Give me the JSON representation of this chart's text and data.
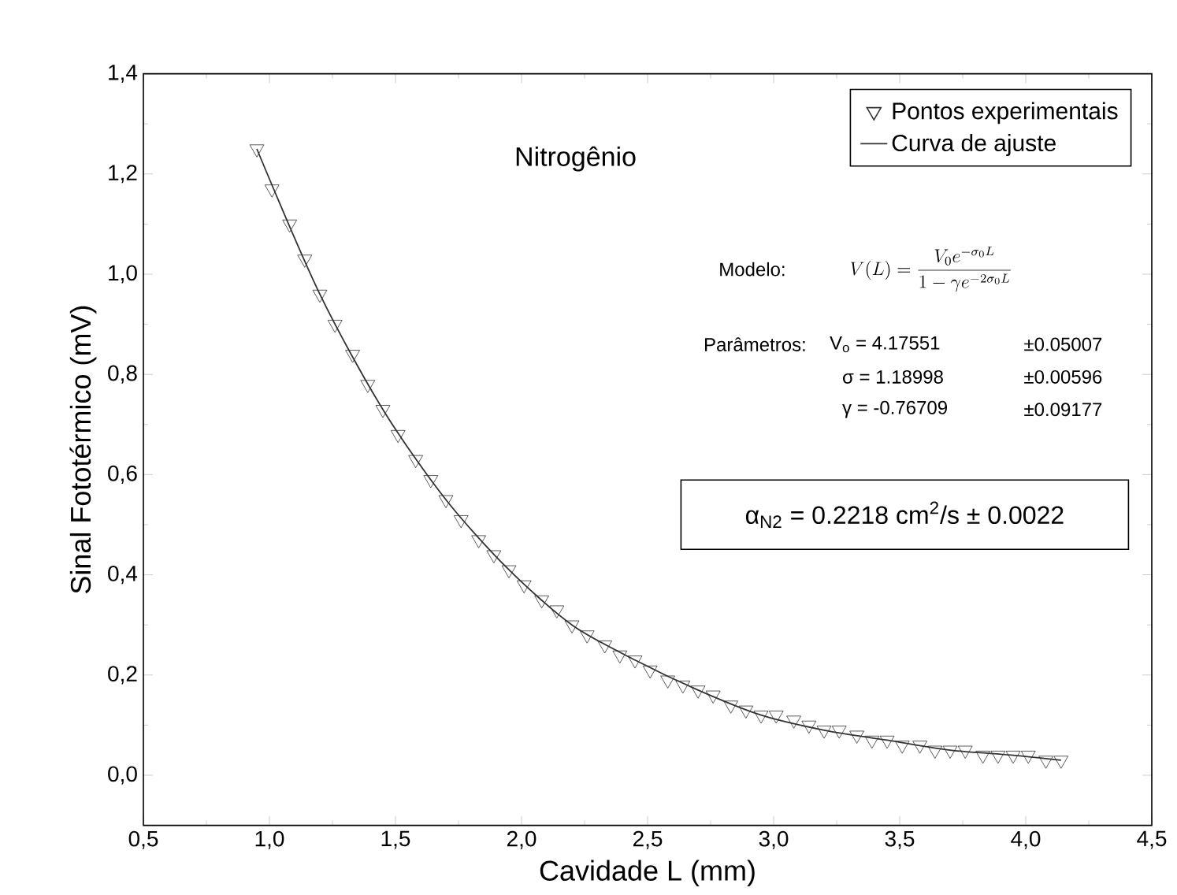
{
  "chart_data": {
    "type": "scatter",
    "xlabel": "Cavidade L (mm)",
    "ylabel": "Sinal Fototérmico (mV)",
    "xlim": [
      0.5,
      4.5
    ],
    "ylim": [
      -0.1,
      1.4
    ],
    "xticks": [
      {
        "value": 0.5,
        "label": "0,5"
      },
      {
        "value": 1.0,
        "label": "1,0"
      },
      {
        "value": 1.5,
        "label": "1,5"
      },
      {
        "value": 2.0,
        "label": "2,0"
      },
      {
        "value": 2.5,
        "label": "2,5"
      },
      {
        "value": 3.0,
        "label": "3,0"
      },
      {
        "value": 3.5,
        "label": "3,5"
      },
      {
        "value": 4.0,
        "label": "4,0"
      },
      {
        "value": 4.5,
        "label": "4,5"
      }
    ],
    "yticks": [
      {
        "value": 0.0,
        "label": "0,0"
      },
      {
        "value": 0.2,
        "label": "0,2"
      },
      {
        "value": 0.4,
        "label": "0,4"
      },
      {
        "value": 0.6,
        "label": "0,6"
      },
      {
        "value": 0.8,
        "label": "0,8"
      },
      {
        "value": 1.0,
        "label": "1,0"
      },
      {
        "value": 1.2,
        "label": "1,2"
      },
      {
        "value": 1.4,
        "label": "1,4"
      }
    ],
    "legend": "top right",
    "marker": "triangle",
    "series": [
      {
        "name": "Pontos experimentais",
        "color": "#333333",
        "x": [
          0.95,
          1.01,
          1.08,
          1.14,
          1.2,
          1.26,
          1.33,
          1.39,
          1.45,
          1.51,
          1.58,
          1.64,
          1.7,
          1.76,
          1.83,
          1.89,
          1.95,
          2.01,
          2.08,
          2.14,
          2.2,
          2.26,
          2.33,
          2.39,
          2.45,
          2.51,
          2.58,
          2.64,
          2.7,
          2.76,
          2.83,
          2.89,
          2.95,
          3.01,
          3.08,
          3.14,
          3.2,
          3.26,
          3.33,
          3.39,
          3.45,
          3.51,
          3.58,
          3.64,
          3.7,
          3.76,
          3.83,
          3.89,
          3.95,
          4.01,
          4.08,
          4.14
        ],
        "values": [
          1.25,
          1.17,
          1.1,
          1.03,
          0.96,
          0.9,
          0.84,
          0.78,
          0.73,
          0.68,
          0.63,
          0.59,
          0.55,
          0.51,
          0.47,
          0.44,
          0.41,
          0.38,
          0.35,
          0.33,
          0.3,
          0.28,
          0.26,
          0.24,
          0.23,
          0.21,
          0.19,
          0.18,
          0.17,
          0.16,
          0.14,
          0.13,
          0.12,
          0.12,
          0.11,
          0.1,
          0.09,
          0.09,
          0.08,
          0.07,
          0.07,
          0.06,
          0.06,
          0.05,
          0.05,
          0.05,
          0.04,
          0.04,
          0.04,
          0.04,
          0.03,
          0.03
        ]
      },
      {
        "name": "Curva de ajuste",
        "type": "line",
        "color": "#333333",
        "marker": "none",
        "x": [
          0.95,
          1.2,
          1.45,
          1.7,
          1.95,
          2.2,
          2.45,
          2.7,
          2.95,
          3.2,
          3.45,
          3.7,
          3.95,
          4.14
        ],
        "values": [
          1.25,
          0.96,
          0.73,
          0.55,
          0.41,
          0.3,
          0.23,
          0.17,
          0.12,
          0.09,
          0.07,
          0.05,
          0.04,
          0.03
        ]
      }
    ],
    "annotations": [
      "Nitrogênio",
      "Modelo:",
      "V(L) = \\frac{V_0 e^{-\\sigma_0 L}}{1-\\gamma e^{-2\\sigma_0 L}}",
      "Parâmetros:",
      "V$_{o}$ = 4.17551",
      "±0.05007",
      "σ  = 1.18998",
      "±0.00596",
      "γ  = -0.76709",
      "±0.09177",
      "α$_{N2}$ = 0.2218 cm$^{2}$/s   ± 0.0022"
    ]
  }
}
